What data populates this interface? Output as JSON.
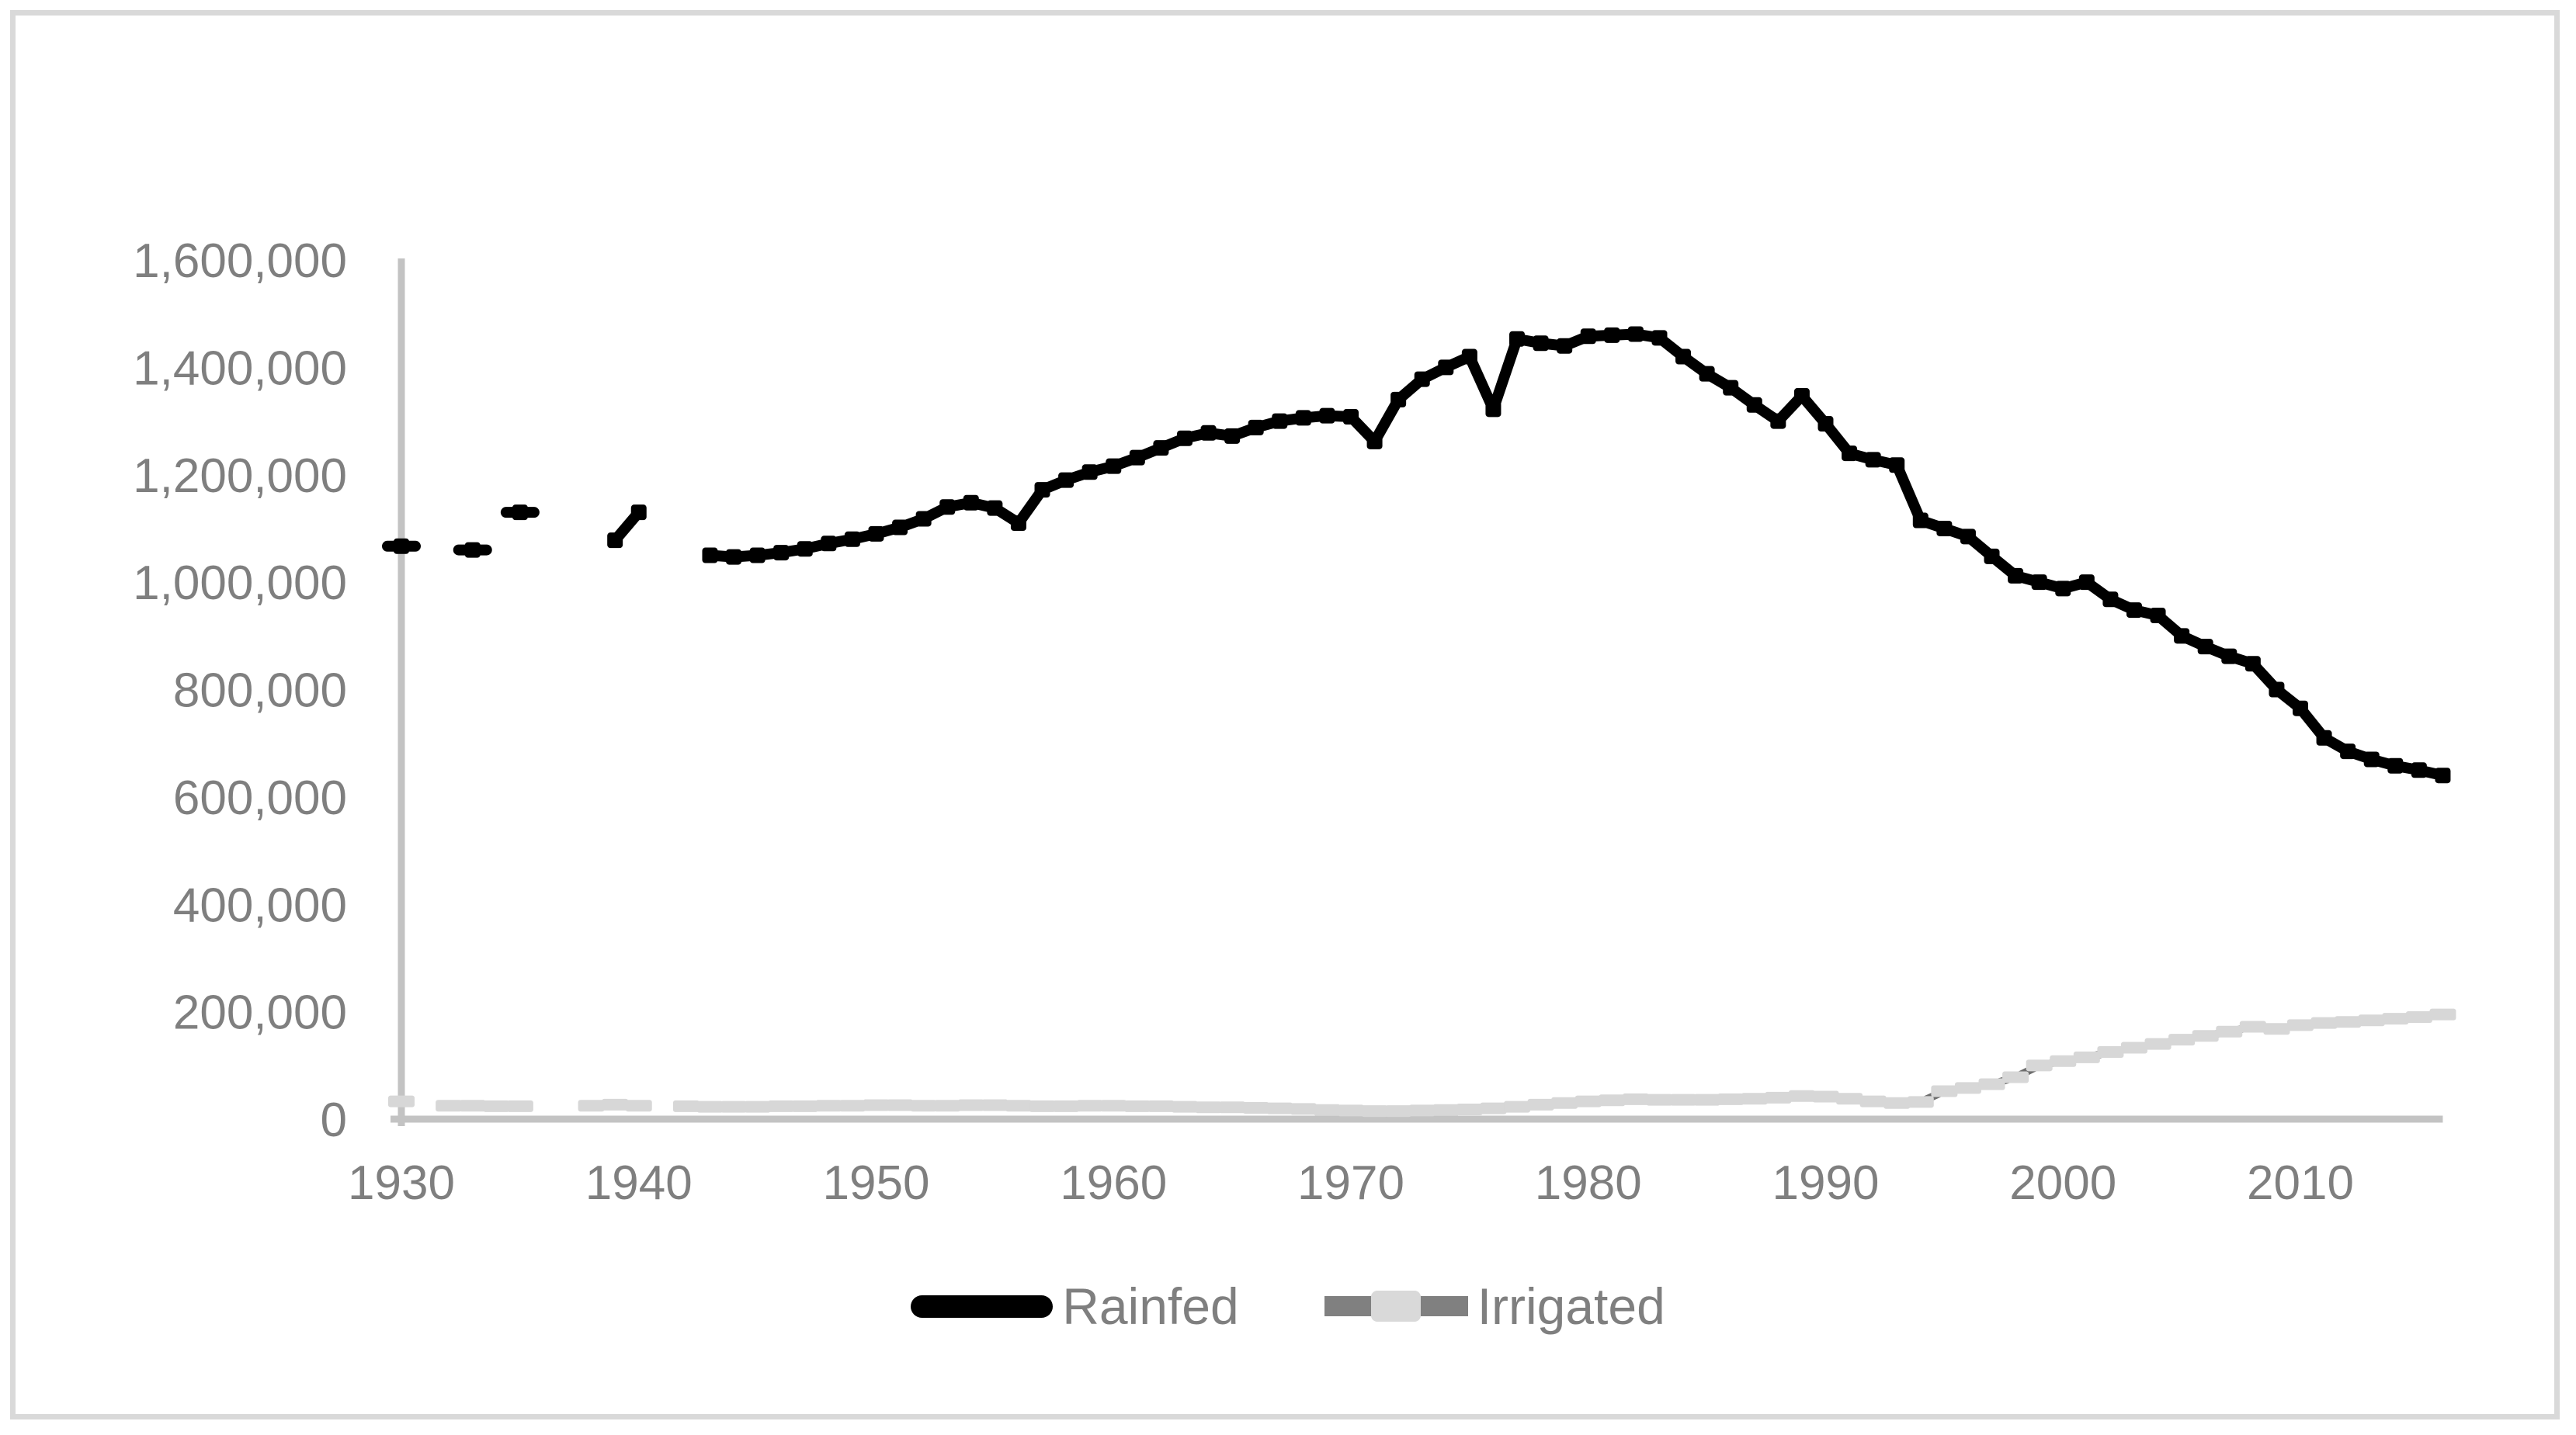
{
  "chart_data": {
    "type": "line",
    "title": "",
    "xlabel": "",
    "ylabel": "",
    "grid": false,
    "legend_position": "bottom",
    "xlim": [
      1930,
      2016
    ],
    "ylim": [
      0,
      1600000
    ],
    "xticks": {
      "values": [
        1930,
        1940,
        1950,
        1960,
        1970,
        1980,
        1990,
        2000,
        2010
      ],
      "labels": [
        "1930",
        "1940",
        "1950",
        "1960",
        "1970",
        "1980",
        "1990",
        "2000",
        "2010"
      ]
    },
    "yticks": {
      "values": [
        0,
        200000,
        400000,
        600000,
        800000,
        1000000,
        1200000,
        1400000,
        1600000
      ],
      "labels": [
        "0",
        "200,000",
        "400,000",
        "600,000",
        "800,000",
        "1,000,000",
        "1,200,000",
        "1,400,000",
        "1,600,000"
      ]
    },
    "x": [
      1930,
      1931,
      1932,
      1933,
      1934,
      1935,
      1936,
      1937,
      1938,
      1939,
      1940,
      1941,
      1942,
      1943,
      1944,
      1945,
      1946,
      1947,
      1948,
      1949,
      1950,
      1951,
      1952,
      1953,
      1954,
      1955,
      1956,
      1957,
      1958,
      1959,
      1960,
      1961,
      1962,
      1963,
      1964,
      1965,
      1966,
      1967,
      1968,
      1969,
      1970,
      1971,
      1972,
      1973,
      1974,
      1975,
      1976,
      1977,
      1978,
      1979,
      1980,
      1981,
      1982,
      1983,
      1984,
      1985,
      1986,
      1987,
      1988,
      1989,
      1990,
      1991,
      1992,
      1993,
      1994,
      1995,
      1996,
      1997,
      1998,
      1999,
      2000,
      2001,
      2002,
      2003,
      2004,
      2005,
      2006,
      2007,
      2008,
      2009,
      2010,
      2011,
      2012,
      2013,
      2014,
      2015,
      2016
    ],
    "series": [
      {
        "name": "Rainfed",
        "values": [
          1067000,
          null,
          null,
          1060000,
          null,
          1130000,
          null,
          null,
          null,
          1078000,
          1130000,
          null,
          null,
          1050000,
          1047000,
          1050000,
          1055000,
          1062000,
          1072000,
          1080000,
          1090000,
          1102000,
          1118000,
          1140000,
          1148000,
          1138000,
          1110000,
          1172000,
          1190000,
          1205000,
          1216000,
          1232000,
          1250000,
          1268000,
          1278000,
          1272000,
          1288000,
          1300000,
          1306000,
          1310000,
          1308000,
          1262000,
          1340000,
          1378000,
          1400000,
          1420000,
          1322000,
          1453000,
          1445000,
          1440000,
          1458000,
          1460000,
          1462000,
          1455000,
          1420000,
          1388000,
          1362000,
          1330000,
          1300000,
          1347000,
          1295000,
          1240000,
          1228000,
          1218000,
          1115000,
          1100000,
          1085000,
          1048000,
          1012000,
          1000000,
          988000,
          1000000,
          968000,
          948000,
          938000,
          900000,
          880000,
          862000,
          848000,
          800000,
          765000,
          710000,
          685000,
          670000,
          658000,
          650000,
          640000
        ]
      },
      {
        "name": "Irrigated",
        "values": [
          33000,
          null,
          25000,
          25000,
          24000,
          24000,
          null,
          null,
          25000,
          27000,
          25000,
          null,
          24000,
          23000,
          23000,
          23000,
          24000,
          24000,
          25000,
          25000,
          26000,
          26000,
          25000,
          25000,
          26000,
          26000,
          25000,
          24000,
          24000,
          25000,
          25000,
          24000,
          24000,
          23000,
          22000,
          22000,
          21000,
          20000,
          19000,
          17000,
          16000,
          15000,
          15000,
          16000,
          17000,
          18000,
          20000,
          23000,
          27000,
          30000,
          33000,
          35000,
          37000,
          36000,
          36000,
          36000,
          37000,
          38000,
          40000,
          43000,
          42000,
          38000,
          33000,
          30000,
          32000,
          52000,
          58000,
          65000,
          78000,
          100000,
          108000,
          115000,
          125000,
          133000,
          140000,
          148000,
          155000,
          163000,
          172000,
          168000,
          175000,
          179000,
          181000,
          184000,
          187000,
          190000,
          195000
        ]
      }
    ]
  },
  "legend": {
    "items": [
      {
        "label": "Rainfed"
      },
      {
        "label": "Irrigated"
      }
    ]
  },
  "colors": {
    "rainfed_line": "#000000",
    "irrigated_marker": "#d7d7d7",
    "irrigated_line": "#6e6e6e",
    "axis": "#c3c3c3",
    "tick_label": "#7f7f7f",
    "legend_text": "#7f7f7f",
    "frame_border": "#d9d9d9",
    "background": "#ffffff"
  }
}
